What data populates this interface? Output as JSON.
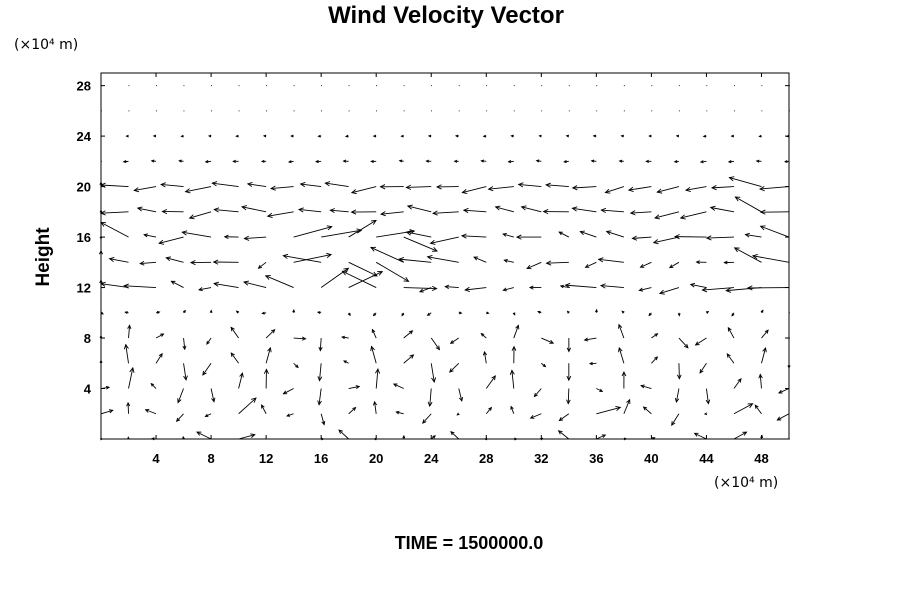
{
  "chart_data": {
    "type": "vector-field",
    "title": "Wind Velocity Vector",
    "xlabel": "",
    "ylabel": "Height",
    "x_unit_label": "(×10⁴ m)",
    "y_unit_label": "(×10⁴ m)",
    "xlim": [
      0,
      50
    ],
    "ylim": [
      0,
      29
    ],
    "xticks": [
      4,
      8,
      12,
      16,
      20,
      24,
      28,
      32,
      36,
      40,
      44,
      48
    ],
    "yticks": [
      4,
      8,
      12,
      16,
      20,
      24,
      28
    ],
    "grid_x_step": 2,
    "grid_y_step": 2,
    "arrow_color": "#000000",
    "footer": "TIME = 1500000.0"
  }
}
